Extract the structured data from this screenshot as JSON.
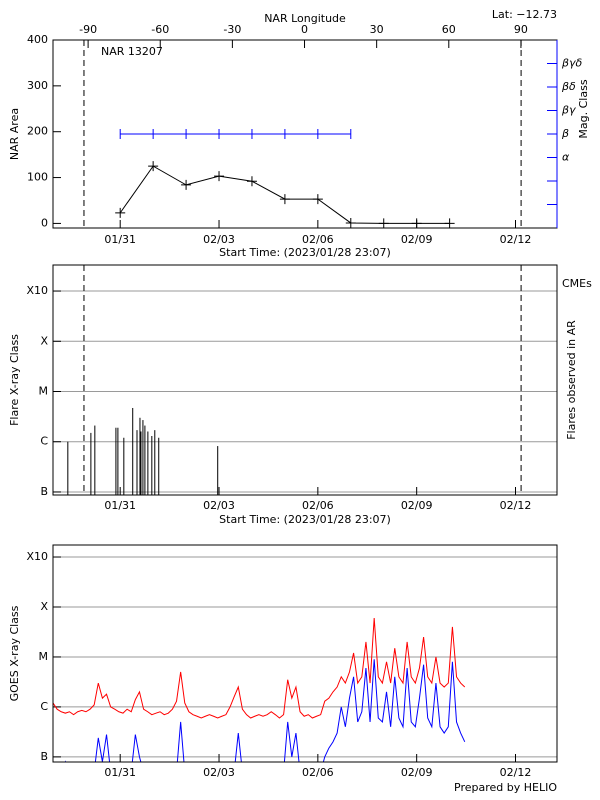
{
  "chart_data": [
    {
      "type": "line",
      "title": "NAR 13207",
      "annotation": "Lat: −12.73",
      "x2label": "NAR Longitude",
      "ylabel": "NAR Area",
      "y2label": "Mag. Class",
      "y2_color": "#0000ff",
      "xlabel": "Start Time: (2023/01/28 23:07)",
      "xlim": [
        0,
        15.3
      ],
      "xticks": [
        {
          "value": 2.04,
          "label": "01/31"
        },
        {
          "value": 5.04,
          "label": "02/03"
        },
        {
          "value": 8.04,
          "label": "02/06"
        },
        {
          "value": 11.04,
          "label": "02/09"
        },
        {
          "value": 14.04,
          "label": "02/12"
        }
      ],
      "x2lim": [
        -104.6,
        105
      ],
      "x2ticks": [
        -90,
        -60,
        -30,
        0,
        30,
        60,
        90
      ],
      "ylim": [
        -10,
        400
      ],
      "yticks": [
        0,
        100,
        200,
        300,
        400
      ],
      "y2lim": [
        0,
        8
      ],
      "y2ticks": [
        {
          "value": 3,
          "label": "α"
        },
        {
          "value": 4,
          "label": "β"
        },
        {
          "value": 5,
          "label": "βγ"
        },
        {
          "value": 6,
          "label": "βδ"
        },
        {
          "value": 7,
          "label": "βγδ"
        }
      ],
      "y2minor": [
        1,
        2
      ],
      "limb_x": [
        0.94,
        14.21
      ],
      "grid": false,
      "x": [
        2.04,
        3.04,
        4.04,
        5.04,
        6.04,
        7.04,
        8.04,
        9.04,
        10.04,
        11.04,
        12.04
      ],
      "series": [
        {
          "color": "#000000",
          "marker": "+",
          "values": [
            23,
            125,
            84,
            103,
            92,
            53,
            53,
            1,
            0,
            0,
            0
          ]
        },
        {
          "color": "#0000ff",
          "marker": "|",
          "axis": "y2",
          "values": [
            4,
            4,
            4,
            4,
            4,
            4,
            4,
            4,
            null,
            null,
            null
          ]
        }
      ]
    },
    {
      "type": "stem",
      "annotation": "CMEs",
      "annotation_color": "#ff0000",
      "ylabel": "Flare X-ray Class",
      "y2label": "Flares observed in AR",
      "xlabel": "Start Time: (2023/01/28 23:07)",
      "xlim": [
        0,
        15.3
      ],
      "xticks": [
        {
          "value": 2.04,
          "label": "01/31"
        },
        {
          "value": 5.04,
          "label": "02/03"
        },
        {
          "value": 8.04,
          "label": "02/06"
        },
        {
          "value": 11.04,
          "label": "02/09"
        },
        {
          "value": 14.04,
          "label": "02/12"
        }
      ],
      "log": true,
      "ylim": [
        8.7e-08,
        0.0033
      ],
      "yticks": [
        {
          "value": 1e-07,
          "label": "B"
        },
        {
          "value": 1e-06,
          "label": "C"
        },
        {
          "value": 1e-05,
          "label": "M"
        },
        {
          "value": 0.0001,
          "label": "X"
        },
        {
          "value": 0.001,
          "label": "X10"
        }
      ],
      "limb_x": [
        0.94,
        14.21
      ],
      "grid": true,
      "color": "#000000",
      "x": [
        0.45,
        1.15,
        1.27,
        1.91,
        1.97,
        2.15,
        2.42,
        2.55,
        2.64,
        2.67,
        2.73,
        2.79,
        2.88,
        3.0,
        3.09,
        3.21,
        5.0
      ],
      "values": [
        1e-06,
        1.5e-06,
        2.1e-06,
        1.9e-06,
        1.9e-06,
        1.2e-06,
        4.7e-06,
        1.7e-06,
        3e-06,
        1.6e-06,
        2.7e-06,
        2.1e-06,
        1.6e-06,
        1.3e-06,
        1.7e-06,
        1.2e-06,
        8.2e-07
      ]
    },
    {
      "type": "line",
      "ylabel": "GOES X-ray Class",
      "footer": "Prepared by HELIO",
      "xlim": [
        0,
        15.3
      ],
      "xticks": [
        {
          "value": 2.04,
          "label": "01/31"
        },
        {
          "value": 5.04,
          "label": "02/03"
        },
        {
          "value": 8.04,
          "label": "02/06"
        },
        {
          "value": 11.04,
          "label": "02/09"
        },
        {
          "value": 14.04,
          "label": "02/12"
        }
      ],
      "log": true,
      "ylim": [
        7.9e-08,
        0.00174
      ],
      "yticks": [
        {
          "value": 1e-07,
          "label": "B"
        },
        {
          "value": 1e-06,
          "label": "C"
        },
        {
          "value": 1e-05,
          "label": "M"
        },
        {
          "value": 0.0001,
          "label": "X"
        },
        {
          "value": 0.001,
          "label": "X10"
        }
      ],
      "grid": true,
      "x": [
        0,
        0.125,
        0.25,
        0.375,
        0.5,
        0.625,
        0.75,
        0.875,
        1,
        1.125,
        1.25,
        1.375,
        1.5,
        1.625,
        1.75,
        1.875,
        2,
        2.125,
        2.25,
        2.375,
        2.5,
        2.625,
        2.75,
        2.875,
        3,
        3.125,
        3.25,
        3.375,
        3.5,
        3.625,
        3.75,
        3.875,
        4,
        4.125,
        4.25,
        4.375,
        4.5,
        4.625,
        4.75,
        4.875,
        5,
        5.125,
        5.25,
        5.375,
        5.5,
        5.625,
        5.75,
        5.875,
        6,
        6.125,
        6.25,
        6.375,
        6.5,
        6.625,
        6.75,
        6.875,
        7,
        7.125,
        7.25,
        7.375,
        7.5,
        7.625,
        7.75,
        7.875,
        8,
        8.125,
        8.25,
        8.375,
        8.5,
        8.625,
        8.75,
        8.875,
        9,
        9.125,
        9.25,
        9.375,
        9.5,
        9.625,
        9.75,
        9.875,
        10,
        10.125,
        10.25,
        10.375,
        10.5,
        10.625,
        10.75,
        10.875,
        11,
        11.125,
        11.25,
        11.375,
        11.5,
        11.625,
        11.75,
        11.875,
        12,
        12.125,
        12.25,
        12.375,
        12.5
      ],
      "series": [
        {
          "color": "#ff0000",
          "values": [
            1.2e-06,
            9e-07,
            8e-07,
            7.5e-07,
            8e-07,
            7e-07,
            8e-07,
            8.5e-07,
            8e-07,
            9e-07,
            1.1e-06,
            3e-06,
            1.5e-06,
            1.8e-06,
            1e-06,
            9e-07,
            8e-07,
            7.5e-07,
            9e-07,
            8e-07,
            1.4e-06,
            2e-06,
            9e-07,
            8e-07,
            7e-07,
            7.5e-07,
            8e-07,
            7e-07,
            7.5e-07,
            9e-07,
            1.3e-06,
            5e-06,
            1.2e-06,
            8e-07,
            7e-07,
            6.5e-07,
            6e-07,
            6.5e-07,
            7e-07,
            6.5e-07,
            6e-07,
            6.5e-07,
            7e-07,
            1e-06,
            1.6e-06,
            2.5e-06,
            9e-07,
            7e-07,
            6e-07,
            6.5e-07,
            7e-07,
            6.5e-07,
            7e-07,
            8e-07,
            7e-07,
            6e-07,
            7e-07,
            3.5e-06,
            1.5e-06,
            2.5e-06,
            8e-07,
            6.5e-07,
            7e-07,
            6e-07,
            6.5e-07,
            7e-07,
            1.3e-06,
            1.5e-06,
            2e-06,
            2.5e-06,
            4e-06,
            3e-06,
            5e-06,
            1.2e-05,
            3e-06,
            4e-06,
            2e-05,
            3e-06,
            6e-05,
            4e-06,
            3e-06,
            8e-06,
            3e-06,
            1.5e-05,
            4e-06,
            3e-06,
            2e-05,
            4e-06,
            3e-06,
            6e-06,
            2.5e-05,
            4e-06,
            3e-06,
            1e-05,
            3e-06,
            2.5e-06,
            3e-06,
            4e-05,
            4e-06,
            3e-06,
            2.5e-06
          ]
        },
        {
          "color": "#0000ff",
          "values": [
            5e-08,
            5e-08,
            5e-08,
            8e-08,
            5e-08,
            5e-08,
            5e-08,
            5e-08,
            5e-08,
            5e-08,
            5e-08,
            2.4e-07,
            8e-08,
            2.8e-07,
            5e-08,
            5e-08,
            5e-08,
            5e-08,
            5e-08,
            5e-08,
            2.8e-07,
            1e-07,
            5e-08,
            5e-08,
            5e-08,
            5e-08,
            5e-08,
            5e-08,
            5e-08,
            5e-08,
            5e-08,
            5e-07,
            5e-08,
            5e-08,
            5e-08,
            5e-08,
            5e-08,
            5e-08,
            5e-08,
            5e-08,
            5e-08,
            5e-08,
            5e-08,
            5e-08,
            5e-08,
            3e-07,
            5e-08,
            5e-08,
            5e-08,
            5e-08,
            5e-08,
            5e-08,
            5e-08,
            5e-08,
            5e-08,
            5e-08,
            5e-08,
            5e-07,
            1e-07,
            3e-07,
            5e-08,
            5e-08,
            5e-08,
            5e-08,
            5e-08,
            5e-08,
            1e-07,
            1.5e-07,
            2e-07,
            3e-07,
            1e-06,
            4e-07,
            1.5e-06,
            4e-06,
            5e-07,
            8e-07,
            6e-06,
            5e-07,
            9e-06,
            6e-07,
            5e-07,
            2e-06,
            4e-07,
            4e-06,
            6e-07,
            4e-07,
            6e-06,
            5e-07,
            4e-07,
            1.5e-06,
            7e-06,
            6e-07,
            4e-07,
            3e-06,
            4e-07,
            3e-07,
            4e-07,
            8e-06,
            5e-07,
            3e-07,
            2e-07
          ]
        }
      ]
    }
  ]
}
